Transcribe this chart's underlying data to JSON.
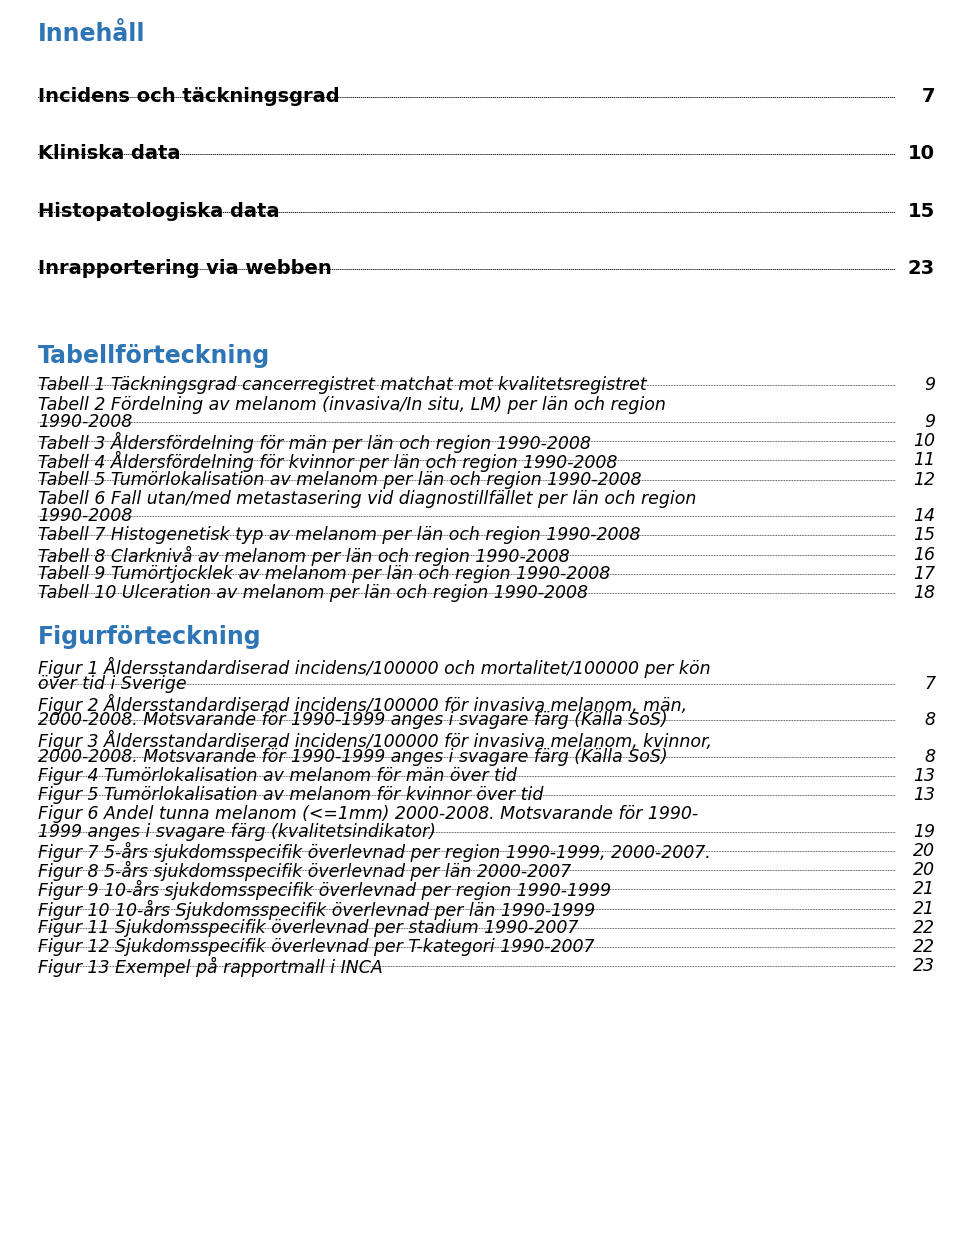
{
  "background_color": "#ffffff",
  "heading_color": "#2E75B6",
  "text_color": "#000000",
  "heading": "Innehåll",
  "heading_fontsize": 17,
  "section_fontsize": 14,
  "italic_fontsize": 12.5,
  "section_entries": [
    {
      "text": "Incidens och täckningsgrad",
      "page": "7"
    },
    {
      "text": "Kliniska data",
      "page": "10"
    },
    {
      "text": "Histopatologiska data",
      "page": "15"
    },
    {
      "text": "Inrapportering via webben ",
      "page": "23"
    }
  ],
  "tabell_heading": "Tabellförteckning",
  "tabell_entries": [
    {
      "text": "Tabell 1 Täckningsgrad cancerregistret matchat mot kvalitetsregistret",
      "page": "9",
      "lines": 1
    },
    {
      "text": "Tabell 2 Fördelning av melanom (invasiva/In situ, LM) per län och region\n1990-2008",
      "page": "9",
      "lines": 2
    },
    {
      "text": "Tabell 3 Åldersfördelning för män per län och region 1990-2008",
      "page": "10",
      "lines": 1
    },
    {
      "text": "Tabell 4 Åldersfördelning för kvinnor per län och region 1990-2008",
      "page": "11",
      "lines": 1
    },
    {
      "text": "Tabell 5 Tumörlokalisation av melanom per län och region 1990-2008",
      "page": "12",
      "lines": 1
    },
    {
      "text": "Tabell 6 Fall utan/med metastasering vid diagnostillfället per län och region\n1990-2008",
      "page": "14",
      "lines": 2
    },
    {
      "text": "Tabell 7 Histogenetisk typ av melanom per län och region 1990-2008",
      "page": "15",
      "lines": 1
    },
    {
      "text": "Tabell 8 Clarknivå av melanom per län och region 1990-2008",
      "page": "16",
      "lines": 1
    },
    {
      "text": "Tabell 9 Tumörtjocklek av melanom per län och region 1990-2008",
      "page": "17",
      "lines": 1
    },
    {
      "text": "Tabell 10 Ulceration av melanom per län och region 1990-2008",
      "page": "18",
      "lines": 1
    }
  ],
  "figur_heading": "Figurförteckning",
  "figur_entries": [
    {
      "text": "Figur 1 Åldersstandardiserad incidens/100000 och mortalitet/100000 per kön\növer tid i Sverige",
      "page": "7",
      "lines": 2
    },
    {
      "text": "Figur 2 Åldersstandardiserad incidens/100000 för invasiva melanom, män,\n2000-2008. Motsvarande för 1990-1999 anges i svagare färg (Källa SoS)",
      "page": "8",
      "lines": 2
    },
    {
      "text": "Figur 3 Åldersstandardiserad incidens/100000 för invasiva melanom, kvinnor,\n2000-2008. Motsvarande för 1990-1999 anges i svagare färg (Källa SoS)",
      "page": "8",
      "lines": 2
    },
    {
      "text": "Figur 4 Tumörlokalisation av melanom för män över tid",
      "page": "13",
      "lines": 1
    },
    {
      "text": "Figur 5 Tumörlokalisation av melanom för kvinnor över tid",
      "page": "13",
      "lines": 1
    },
    {
      "text": "Figur 6 Andel tunna melanom (<=1mm) 2000-2008. Motsvarande för 1990-\n1999 anges i svagare färg (kvalitetsindikator)",
      "page": "19",
      "lines": 2
    },
    {
      "text": "Figur 7 5-års sjukdomsspecifik överlevnad per region 1990-1999, 2000-2007.",
      "page": "20",
      "lines": 1
    },
    {
      "text": "Figur 8 5-års sjukdomsspecifik överlevnad per län 2000-2007",
      "page": "20",
      "lines": 1
    },
    {
      "text": "Figur 9 10-års sjukdomsspecifik överlevnad per region 1990-1999",
      "page": "21",
      "lines": 1
    },
    {
      "text": "Figur 10 10-års Sjukdomsspecifik överlevnad per län 1990-1999",
      "page": "21",
      "lines": 1
    },
    {
      "text": "Figur 11 Sjukdomsspecifik överlevnad per stadium 1990-2007",
      "page": "22",
      "lines": 1
    },
    {
      "text": "Figur 12 Sjukdomsspecifik överlevnad per T-kategori 1990-2007",
      "page": "22",
      "lines": 1
    },
    {
      "text": "Figur 13 Exempel på rapportmall i INCA",
      "page": "23",
      "lines": 1
    }
  ]
}
